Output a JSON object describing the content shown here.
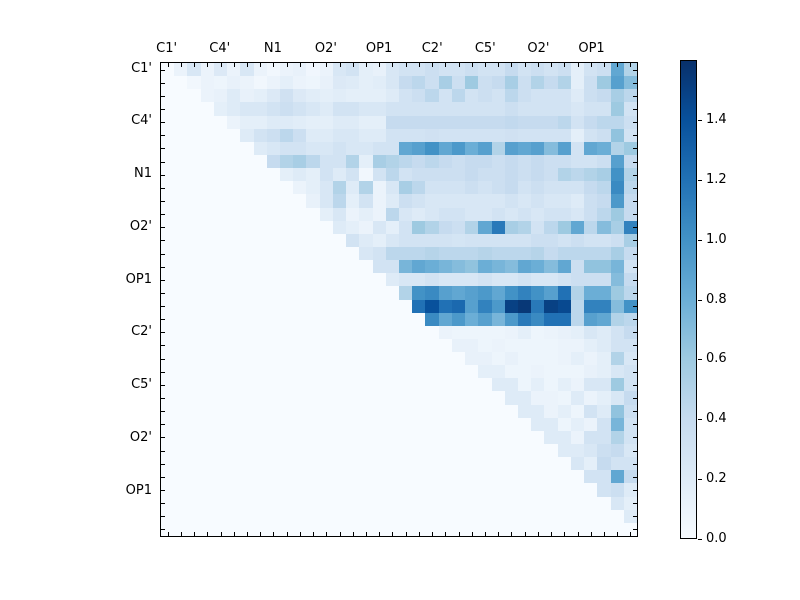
{
  "chart_data": {
    "type": "heatmap",
    "title": "",
    "xlabel": "",
    "ylabel": "",
    "matrix_size": 36,
    "axis_tick_labels": [
      "C1'",
      "C4'",
      "N1",
      "O2'",
      "OP1",
      "C2'",
      "C5'",
      "O2'",
      "OP1"
    ],
    "axis_tick_label_positions": [
      0,
      4,
      8,
      12,
      16,
      20,
      24,
      28,
      32
    ],
    "colormap": "Blues",
    "vmin": 0.0,
    "vmax": 1.6,
    "grid": false,
    "legend_position": "colorbar-right",
    "colorbar_tick_labels": [
      "0.0",
      "0.2",
      "0.4",
      "0.6",
      "0.8",
      "1.0",
      "1.2",
      "1.4"
    ],
    "colorbar_tick_values": [
      0.0,
      0.2,
      0.4,
      0.6,
      0.8,
      1.0,
      1.2,
      1.4
    ],
    "matrix": [
      [
        0,
        0.1,
        0.25,
        0.1,
        0.22,
        0.1,
        0.25,
        0.1,
        0.05,
        0.1,
        0.12,
        0.06,
        0.1,
        0.25,
        0.3,
        0.15,
        0.12,
        0.25,
        0.3,
        0.3,
        0.35,
        0.3,
        0.3,
        0.35,
        0.3,
        0.3,
        0.4,
        0.3,
        0.35,
        0.3,
        0.35,
        0.15,
        0.3,
        0.35,
        0.85,
        0.5
      ],
      [
        0,
        0,
        0.05,
        0.1,
        0.08,
        0.12,
        0.1,
        0.05,
        0.1,
        0.15,
        0.1,
        0.08,
        0.12,
        0.22,
        0.2,
        0.15,
        0.18,
        0.25,
        0.4,
        0.45,
        0.35,
        0.55,
        0.35,
        0.6,
        0.35,
        0.4,
        0.55,
        0.35,
        0.5,
        0.4,
        0.5,
        0.15,
        0.35,
        0.6,
        0.9,
        0.7
      ],
      [
        0,
        0,
        0,
        0.1,
        0.12,
        0.2,
        0.12,
        0.15,
        0.22,
        0.32,
        0.22,
        0.18,
        0.15,
        0.18,
        0.15,
        0.15,
        0.15,
        0.2,
        0.3,
        0.35,
        0.45,
        0.3,
        0.45,
        0.3,
        0.35,
        0.3,
        0.45,
        0.35,
        0.3,
        0.3,
        0.3,
        0.2,
        0.35,
        0.4,
        0.55,
        0.45
      ],
      [
        0,
        0,
        0,
        0,
        0.15,
        0.2,
        0.25,
        0.25,
        0.3,
        0.35,
        0.3,
        0.25,
        0.2,
        0.3,
        0.3,
        0.25,
        0.25,
        0.3,
        0.3,
        0.3,
        0.3,
        0.3,
        0.3,
        0.3,
        0.3,
        0.3,
        0.35,
        0.3,
        0.3,
        0.3,
        0.3,
        0.25,
        0.3,
        0.3,
        0.6,
        0.3
      ],
      [
        0,
        0,
        0,
        0,
        0,
        0.1,
        0.15,
        0.15,
        0.2,
        0.2,
        0.18,
        0.15,
        0.15,
        0.2,
        0.2,
        0.15,
        0.15,
        0.4,
        0.4,
        0.4,
        0.4,
        0.4,
        0.4,
        0.4,
        0.4,
        0.4,
        0.42,
        0.4,
        0.4,
        0.4,
        0.45,
        0.3,
        0.4,
        0.45,
        0.45,
        0.35
      ],
      [
        0,
        0,
        0,
        0,
        0,
        0,
        0.2,
        0.3,
        0.35,
        0.45,
        0.35,
        0.2,
        0.2,
        0.25,
        0.25,
        0.2,
        0.2,
        0.3,
        0.3,
        0.3,
        0.32,
        0.3,
        0.3,
        0.3,
        0.3,
        0.3,
        0.32,
        0.3,
        0.3,
        0.3,
        0.3,
        0.15,
        0.3,
        0.35,
        0.65,
        0.3
      ],
      [
        0,
        0,
        0,
        0,
        0,
        0,
        0,
        0.2,
        0.25,
        0.3,
        0.3,
        0.25,
        0.25,
        0.3,
        0.25,
        0.25,
        0.3,
        0.3,
        0.85,
        0.9,
        1.0,
        0.85,
        0.95,
        0.8,
        0.9,
        0.5,
        0.9,
        0.85,
        0.9,
        0.7,
        0.9,
        0.3,
        0.85,
        0.8,
        0.5,
        0.6
      ],
      [
        0,
        0,
        0,
        0,
        0,
        0,
        0,
        0,
        0.4,
        0.5,
        0.55,
        0.45,
        0.3,
        0.3,
        0.5,
        0.15,
        0.55,
        0.5,
        0.45,
        0.4,
        0.45,
        0.4,
        0.35,
        0.4,
        0.4,
        0.35,
        0.4,
        0.35,
        0.4,
        0.35,
        0.35,
        0.3,
        0.3,
        0.35,
        0.9,
        0.4
      ],
      [
        0,
        0,
        0,
        0,
        0,
        0,
        0,
        0,
        0,
        0.15,
        0.2,
        0.15,
        0.3,
        0.2,
        0.3,
        0.05,
        0.3,
        0.45,
        0.3,
        0.35,
        0.35,
        0.35,
        0.35,
        0.4,
        0.35,
        0.35,
        0.4,
        0.35,
        0.4,
        0.35,
        0.5,
        0.45,
        0.5,
        0.55,
        1.0,
        0.5
      ],
      [
        0,
        0,
        0,
        0,
        0,
        0,
        0,
        0,
        0,
        0,
        0.1,
        0.15,
        0.25,
        0.5,
        0.2,
        0.5,
        0.1,
        0.25,
        0.55,
        0.45,
        0.3,
        0.3,
        0.3,
        0.35,
        0.3,
        0.35,
        0.4,
        0.3,
        0.35,
        0.3,
        0.3,
        0.3,
        0.4,
        0.45,
        1.05,
        0.45
      ],
      [
        0,
        0,
        0,
        0,
        0,
        0,
        0,
        0,
        0,
        0,
        0,
        0.12,
        0.25,
        0.45,
        0.15,
        0.3,
        0.1,
        0.2,
        0.35,
        0.3,
        0.25,
        0.25,
        0.25,
        0.25,
        0.25,
        0.25,
        0.3,
        0.25,
        0.3,
        0.25,
        0.25,
        0.2,
        0.35,
        0.4,
        0.95,
        0.4
      ],
      [
        0,
        0,
        0,
        0,
        0,
        0,
        0,
        0,
        0,
        0,
        0,
        0,
        0.15,
        0.25,
        0.1,
        0.15,
        0.1,
        0.45,
        0.25,
        0.2,
        0.25,
        0.3,
        0.3,
        0.25,
        0.25,
        0.3,
        0.25,
        0.3,
        0.25,
        0.3,
        0.3,
        0.25,
        0.35,
        0.45,
        0.6,
        0.4
      ],
      [
        0,
        0,
        0,
        0,
        0,
        0,
        0,
        0,
        0,
        0,
        0,
        0,
        0,
        0.2,
        0.15,
        0.1,
        0.25,
        0.15,
        0.3,
        0.6,
        0.5,
        0.4,
        0.35,
        0.5,
        0.85,
        1.15,
        0.55,
        0.5,
        0.3,
        0.45,
        0.6,
        0.85,
        0.45,
        0.7,
        0.55,
        1.1
      ],
      [
        0,
        0,
        0,
        0,
        0,
        0,
        0,
        0,
        0,
        0,
        0,
        0,
        0,
        0,
        0.3,
        0.2,
        0.15,
        0.25,
        0.3,
        0.3,
        0.3,
        0.3,
        0.28,
        0.3,
        0.3,
        0.3,
        0.3,
        0.3,
        0.35,
        0.35,
        0.3,
        0.35,
        0.3,
        0.3,
        0.35,
        0.55
      ],
      [
        0,
        0,
        0,
        0,
        0,
        0,
        0,
        0,
        0,
        0,
        0,
        0,
        0,
        0,
        0,
        0.25,
        0.3,
        0.45,
        0.45,
        0.45,
        0.48,
        0.45,
        0.45,
        0.45,
        0.48,
        0.45,
        0.45,
        0.45,
        0.48,
        0.4,
        0.45,
        0.45,
        0.45,
        0.45,
        0.55,
        0.4
      ],
      [
        0,
        0,
        0,
        0,
        0,
        0,
        0,
        0,
        0,
        0,
        0,
        0,
        0,
        0,
        0,
        0,
        0.3,
        0.3,
        0.75,
        0.85,
        0.8,
        0.75,
        0.7,
        0.65,
        0.8,
        0.75,
        0.7,
        0.85,
        0.8,
        0.7,
        0.85,
        0.35,
        0.65,
        0.65,
        0.75,
        0.3
      ],
      [
        0,
        0,
        0,
        0,
        0,
        0,
        0,
        0,
        0,
        0,
        0,
        0,
        0,
        0,
        0,
        0,
        0,
        0.2,
        0.25,
        0.25,
        0.3,
        0.25,
        0.25,
        0.25,
        0.3,
        0.25,
        0.25,
        0.3,
        0.25,
        0.25,
        0.3,
        0.35,
        0.35,
        0.35,
        0.7,
        0.4
      ],
      [
        0,
        0,
        0,
        0,
        0,
        0,
        0,
        0,
        0,
        0,
        0,
        0,
        0,
        0,
        0,
        0,
        0,
        0,
        0.5,
        1.0,
        1.05,
        0.9,
        0.85,
        0.9,
        0.95,
        0.85,
        1.0,
        1.1,
        1.0,
        0.9,
        1.2,
        0.5,
        0.8,
        0.8,
        0.6,
        0.45
      ],
      [
        0,
        0,
        0,
        0,
        0,
        0,
        0,
        0,
        0,
        0,
        0,
        0,
        0,
        0,
        0,
        0,
        0,
        0,
        0,
        1.2,
        1.4,
        1.2,
        1.25,
        0.9,
        1.1,
        0.95,
        1.5,
        1.55,
        1.15,
        1.5,
        1.45,
        0.45,
        1.1,
        1.1,
        0.7,
        1.0
      ],
      [
        0,
        0,
        0,
        0,
        0,
        0,
        0,
        0,
        0,
        0,
        0,
        0,
        0,
        0,
        0,
        0,
        0,
        0,
        0,
        0,
        1.05,
        0.85,
        0.95,
        0.8,
        0.9,
        0.75,
        0.95,
        1.15,
        1.05,
        1.2,
        1.2,
        0.45,
        0.9,
        0.85,
        0.5,
        0.45
      ],
      [
        0,
        0,
        0,
        0,
        0,
        0,
        0,
        0,
        0,
        0,
        0,
        0,
        0,
        0,
        0,
        0,
        0,
        0,
        0,
        0,
        0,
        0.1,
        0.08,
        0.08,
        0.08,
        0.08,
        0.1,
        0.15,
        0.08,
        0.1,
        0.12,
        0.15,
        0.25,
        0.2,
        0.3,
        0.4
      ],
      [
        0,
        0,
        0,
        0,
        0,
        0,
        0,
        0,
        0,
        0,
        0,
        0,
        0,
        0,
        0,
        0,
        0,
        0,
        0,
        0,
        0,
        0,
        0.12,
        0.12,
        0.08,
        0.1,
        0.08,
        0.08,
        0.08,
        0.08,
        0.1,
        0.1,
        0.15,
        0.2,
        0.3,
        0.3
      ],
      [
        0,
        0,
        0,
        0,
        0,
        0,
        0,
        0,
        0,
        0,
        0,
        0,
        0,
        0,
        0,
        0,
        0,
        0,
        0,
        0,
        0,
        0,
        0,
        0.12,
        0.12,
        0.08,
        0.12,
        0.08,
        0.08,
        0.08,
        0.1,
        0.15,
        0.1,
        0.15,
        0.5,
        0.25
      ],
      [
        0,
        0,
        0,
        0,
        0,
        0,
        0,
        0,
        0,
        0,
        0,
        0,
        0,
        0,
        0,
        0,
        0,
        0,
        0,
        0,
        0,
        0,
        0,
        0,
        0.15,
        0.15,
        0.08,
        0.08,
        0.1,
        0.08,
        0.08,
        0.08,
        0.12,
        0.15,
        0.25,
        0.3
      ],
      [
        0,
        0,
        0,
        0,
        0,
        0,
        0,
        0,
        0,
        0,
        0,
        0,
        0,
        0,
        0,
        0,
        0,
        0,
        0,
        0,
        0,
        0,
        0,
        0,
        0,
        0.2,
        0.2,
        0.08,
        0.15,
        0.08,
        0.15,
        0.1,
        0.25,
        0.25,
        0.6,
        0.3
      ],
      [
        0,
        0,
        0,
        0,
        0,
        0,
        0,
        0,
        0,
        0,
        0,
        0,
        0,
        0,
        0,
        0,
        0,
        0,
        0,
        0,
        0,
        0,
        0,
        0,
        0,
        0,
        0.2,
        0.2,
        0.1,
        0.1,
        0.08,
        0.2,
        0.1,
        0.15,
        0.25,
        0.4
      ],
      [
        0,
        0,
        0,
        0,
        0,
        0,
        0,
        0,
        0,
        0,
        0,
        0,
        0,
        0,
        0,
        0,
        0,
        0,
        0,
        0,
        0,
        0,
        0,
        0,
        0,
        0,
        0,
        0.2,
        0.2,
        0.1,
        0.15,
        0.08,
        0.3,
        0.2,
        0.65,
        0.35
      ],
      [
        0,
        0,
        0,
        0,
        0,
        0,
        0,
        0,
        0,
        0,
        0,
        0,
        0,
        0,
        0,
        0,
        0,
        0,
        0,
        0,
        0,
        0,
        0,
        0,
        0,
        0,
        0,
        0,
        0.2,
        0.2,
        0.08,
        0.15,
        0.1,
        0.3,
        0.75,
        0.3
      ],
      [
        0,
        0,
        0,
        0,
        0,
        0,
        0,
        0,
        0,
        0,
        0,
        0,
        0,
        0,
        0,
        0,
        0,
        0,
        0,
        0,
        0,
        0,
        0,
        0,
        0,
        0,
        0,
        0,
        0,
        0.2,
        0.2,
        0.1,
        0.3,
        0.3,
        0.5,
        0.3
      ],
      [
        0,
        0,
        0,
        0,
        0,
        0,
        0,
        0,
        0,
        0,
        0,
        0,
        0,
        0,
        0,
        0,
        0,
        0,
        0,
        0,
        0,
        0,
        0,
        0,
        0,
        0,
        0,
        0,
        0,
        0,
        0.2,
        0.2,
        0.25,
        0.35,
        0.4,
        0.25
      ],
      [
        0,
        0,
        0,
        0,
        0,
        0,
        0,
        0,
        0,
        0,
        0,
        0,
        0,
        0,
        0,
        0,
        0,
        0,
        0,
        0,
        0,
        0,
        0,
        0,
        0,
        0,
        0,
        0,
        0,
        0,
        0,
        0.25,
        0.15,
        0.4,
        0.3,
        0.3
      ],
      [
        0,
        0,
        0,
        0,
        0,
        0,
        0,
        0,
        0,
        0,
        0,
        0,
        0,
        0,
        0,
        0,
        0,
        0,
        0,
        0,
        0,
        0,
        0,
        0,
        0,
        0,
        0,
        0,
        0,
        0,
        0,
        0,
        0.3,
        0.3,
        0.85,
        0.4
      ],
      [
        0,
        0,
        0,
        0,
        0,
        0,
        0,
        0,
        0,
        0,
        0,
        0,
        0,
        0,
        0,
        0,
        0,
        0,
        0,
        0,
        0,
        0,
        0,
        0,
        0,
        0,
        0,
        0,
        0,
        0,
        0,
        0,
        0,
        0.3,
        0.35,
        0.2
      ],
      [
        0,
        0,
        0,
        0,
        0,
        0,
        0,
        0,
        0,
        0,
        0,
        0,
        0,
        0,
        0,
        0,
        0,
        0,
        0,
        0,
        0,
        0,
        0,
        0,
        0,
        0,
        0,
        0,
        0,
        0,
        0,
        0,
        0,
        0,
        0.25,
        0.15
      ],
      [
        0,
        0,
        0,
        0,
        0,
        0,
        0,
        0,
        0,
        0,
        0,
        0,
        0,
        0,
        0,
        0,
        0,
        0,
        0,
        0,
        0,
        0,
        0,
        0,
        0,
        0,
        0,
        0,
        0,
        0,
        0,
        0,
        0,
        0,
        0,
        0.2
      ],
      [
        0,
        0,
        0,
        0,
        0,
        0,
        0,
        0,
        0,
        0,
        0,
        0,
        0,
        0,
        0,
        0,
        0,
        0,
        0,
        0,
        0,
        0,
        0,
        0,
        0,
        0,
        0,
        0,
        0,
        0,
        0,
        0,
        0,
        0,
        0,
        0
      ]
    ]
  },
  "colors": {
    "background": "#ffffff",
    "axis": "#000000",
    "colormap_stops": [
      "#f7fbff",
      "#deebf7",
      "#c6dbef",
      "#9ecae1",
      "#6baed6",
      "#4292c6",
      "#2171b5",
      "#08519c",
      "#08306b"
    ]
  }
}
